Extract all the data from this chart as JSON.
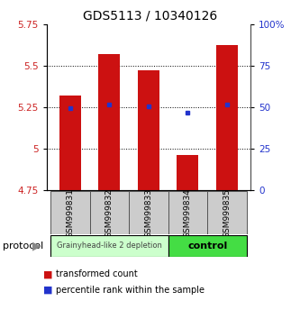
{
  "title": "GDS5113 / 10340126",
  "samples": [
    "GSM999831",
    "GSM999832",
    "GSM999833",
    "GSM999834",
    "GSM999835"
  ],
  "bar_values": [
    5.32,
    5.57,
    5.47,
    4.96,
    5.62
  ],
  "bar_bottom": 4.75,
  "percentile_values": [
    5.245,
    5.263,
    5.255,
    5.215,
    5.263
  ],
  "ylim": [
    4.75,
    5.75
  ],
  "yticks_left": [
    4.75,
    5.0,
    5.25,
    5.5,
    5.75
  ],
  "ytick_labels_left": [
    "4.75",
    "5",
    "5.25",
    "5.5",
    "5.75"
  ],
  "yticks_right": [
    0,
    25,
    50,
    75,
    100
  ],
  "ytick_labels_right": [
    "0",
    "25",
    "50",
    "75",
    "100%"
  ],
  "grid_lines": [
    5.0,
    5.25,
    5.5
  ],
  "bar_color": "#cc1111",
  "dot_color": "#2233cc",
  "group1_label": "Grainyhead-like 2 depletion",
  "group1_color": "#ccffcc",
  "group1_border": "#006600",
  "group2_label": "control",
  "group2_color": "#44dd44",
  "group2_border": "#006600",
  "sample_box_color": "#cccccc",
  "sample_box_border": "#555555",
  "protocol_label": "protocol",
  "arrow_color": "#888888",
  "legend_bar_label": "transformed count",
  "legend_dot_label": "percentile rank within the sample",
  "title_fontsize": 10,
  "tick_fontsize": 7.5,
  "sample_fontsize": 6.5,
  "legend_fontsize": 7,
  "proto_fontsize": 8
}
